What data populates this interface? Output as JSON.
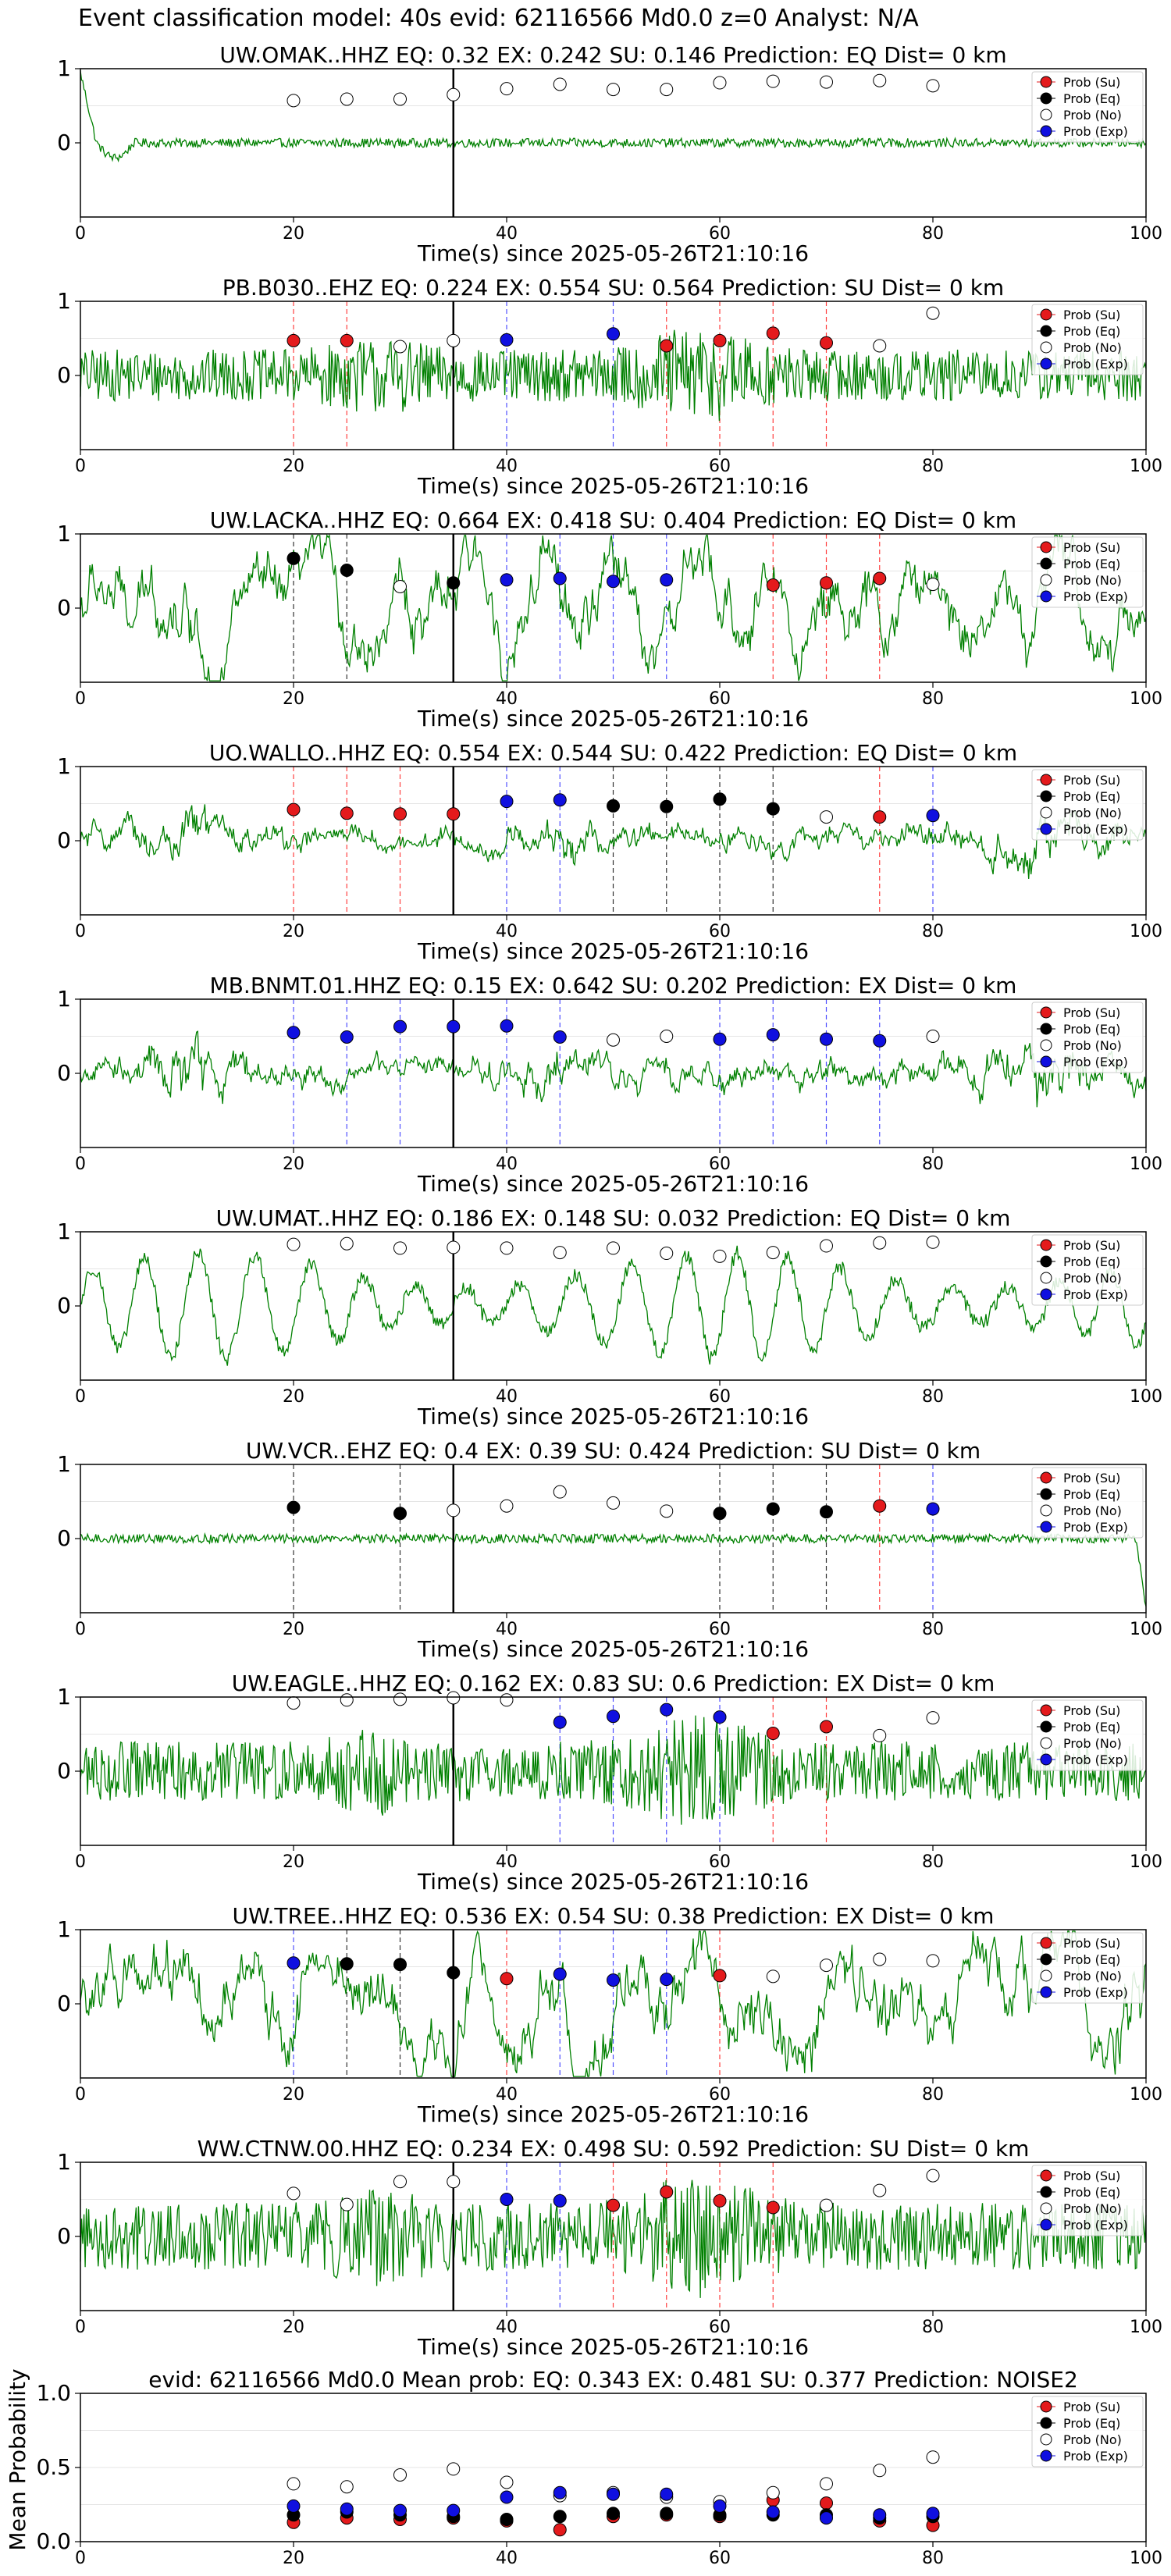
{
  "suptitle": "Event classification model: 40s evid: 62116566 Md0.0 z=0 Analyst: N/A",
  "legend_labels": [
    "Prob (Su)",
    "Prob (Eq)",
    "Prob (No)",
    "Prob (Exp)"
  ],
  "colors": {
    "su": "#e41a1c",
    "eq": "#000000",
    "no": "#ffffff",
    "exp": "#1010e0",
    "trace": "#008000"
  },
  "xlabel": "Time(s) since 2025-05-26T21:10:16",
  "x_ticks": [
    "0",
    "20",
    "40",
    "60",
    "80",
    "100"
  ],
  "chart_data": [
    {
      "type": "line",
      "title": "UW.OMAK..HHZ   EQ: 0.32  EX: 0.242  SU: 0.146   Prediction: EQ    Dist= 0 km",
      "xlim": [
        0,
        100
      ],
      "ylim": [
        -1,
        1
      ],
      "y_ticks": [
        "1",
        "0"
      ],
      "arrival": 35,
      "trace": {
        "amp": 0.06,
        "style": "quiet",
        "spike_start": true
      },
      "points": [
        {
          "x": 20,
          "y": 0.57,
          "c": "no"
        },
        {
          "x": 25,
          "y": 0.59,
          "c": "no"
        },
        {
          "x": 30,
          "y": 0.59,
          "c": "no"
        },
        {
          "x": 35,
          "y": 0.65,
          "c": "no"
        },
        {
          "x": 40,
          "y": 0.73,
          "c": "no"
        },
        {
          "x": 45,
          "y": 0.79,
          "c": "no"
        },
        {
          "x": 50,
          "y": 0.72,
          "c": "no"
        },
        {
          "x": 55,
          "y": 0.72,
          "c": "no"
        },
        {
          "x": 60,
          "y": 0.81,
          "c": "no"
        },
        {
          "x": 65,
          "y": 0.83,
          "c": "no"
        },
        {
          "x": 70,
          "y": 0.82,
          "c": "no"
        },
        {
          "x": 75,
          "y": 0.84,
          "c": "no"
        },
        {
          "x": 80,
          "y": 0.77,
          "c": "no"
        }
      ]
    },
    {
      "type": "line",
      "title": "PB.B030..EHZ   EQ: 0.224  EX: 0.554  SU: 0.564   Prediction: SU    Dist= 0 km",
      "xlim": [
        0,
        100
      ],
      "ylim": [
        -1,
        1
      ],
      "y_ticks": [
        "1",
        "0"
      ],
      "arrival": 35,
      "trace": {
        "amp": 0.35,
        "style": "noisy"
      },
      "points": [
        {
          "x": 20,
          "y": 0.47,
          "c": "su"
        },
        {
          "x": 25,
          "y": 0.47,
          "c": "su"
        },
        {
          "x": 30,
          "y": 0.39,
          "c": "no"
        },
        {
          "x": 35,
          "y": 0.47,
          "c": "no"
        },
        {
          "x": 40,
          "y": 0.48,
          "c": "exp"
        },
        {
          "x": 50,
          "y": 0.56,
          "c": "exp"
        },
        {
          "x": 55,
          "y": 0.4,
          "c": "su"
        },
        {
          "x": 60,
          "y": 0.47,
          "c": "su"
        },
        {
          "x": 65,
          "y": 0.57,
          "c": "su"
        },
        {
          "x": 70,
          "y": 0.44,
          "c": "su"
        },
        {
          "x": 75,
          "y": 0.4,
          "c": "no"
        },
        {
          "x": 80,
          "y": 0.84,
          "c": "no"
        }
      ]
    },
    {
      "type": "line",
      "title": "UW.LACKA..HHZ   EQ: 0.664  EX: 0.418  SU: 0.404   Prediction: EQ    Dist= 0 km",
      "xlim": [
        0,
        100
      ],
      "ylim": [
        -1,
        1
      ],
      "y_ticks": [
        "1",
        "0"
      ],
      "arrival": 35,
      "trace": {
        "amp": 0.5,
        "style": "wavy"
      },
      "points": [
        {
          "x": 20,
          "y": 0.67,
          "c": "eq"
        },
        {
          "x": 25,
          "y": 0.51,
          "c": "eq"
        },
        {
          "x": 30,
          "y": 0.29,
          "c": "no"
        },
        {
          "x": 35,
          "y": 0.34,
          "c": "eq"
        },
        {
          "x": 40,
          "y": 0.38,
          "c": "exp"
        },
        {
          "x": 45,
          "y": 0.4,
          "c": "exp"
        },
        {
          "x": 50,
          "y": 0.36,
          "c": "exp"
        },
        {
          "x": 55,
          "y": 0.38,
          "c": "exp"
        },
        {
          "x": 65,
          "y": 0.31,
          "c": "su"
        },
        {
          "x": 70,
          "y": 0.34,
          "c": "su"
        },
        {
          "x": 75,
          "y": 0.4,
          "c": "su"
        },
        {
          "x": 80,
          "y": 0.32,
          "c": "no"
        }
      ]
    },
    {
      "type": "line",
      "title": "UO.WALLO..HHZ   EQ: 0.554  EX: 0.544  SU: 0.422   Prediction: EQ    Dist= 0 km",
      "xlim": [
        0,
        100
      ],
      "ylim": [
        -1,
        1
      ],
      "y_ticks": [
        "1",
        "0"
      ],
      "arrival": 35,
      "trace": {
        "amp": 0.4,
        "style": "bursty"
      },
      "points": [
        {
          "x": 20,
          "y": 0.42,
          "c": "su"
        },
        {
          "x": 25,
          "y": 0.37,
          "c": "su"
        },
        {
          "x": 30,
          "y": 0.36,
          "c": "su"
        },
        {
          "x": 35,
          "y": 0.36,
          "c": "su"
        },
        {
          "x": 40,
          "y": 0.53,
          "c": "exp"
        },
        {
          "x": 45,
          "y": 0.55,
          "c": "exp"
        },
        {
          "x": 50,
          "y": 0.47,
          "c": "eq"
        },
        {
          "x": 55,
          "y": 0.46,
          "c": "eq"
        },
        {
          "x": 60,
          "y": 0.56,
          "c": "eq"
        },
        {
          "x": 65,
          "y": 0.43,
          "c": "eq"
        },
        {
          "x": 70,
          "y": 0.32,
          "c": "no"
        },
        {
          "x": 75,
          "y": 0.32,
          "c": "su"
        },
        {
          "x": 80,
          "y": 0.34,
          "c": "exp"
        }
      ]
    },
    {
      "type": "line",
      "title": "MB.BNMT.01.HHZ   EQ: 0.15  EX: 0.642  SU: 0.202   Prediction: EX    Dist= 0 km",
      "xlim": [
        0,
        100
      ],
      "ylim": [
        -1,
        1
      ],
      "y_ticks": [
        "1",
        "0"
      ],
      "arrival": 35,
      "trace": {
        "amp": 0.45,
        "style": "bursty"
      },
      "points": [
        {
          "x": 20,
          "y": 0.55,
          "c": "exp"
        },
        {
          "x": 25,
          "y": 0.49,
          "c": "exp"
        },
        {
          "x": 30,
          "y": 0.63,
          "c": "exp"
        },
        {
          "x": 35,
          "y": 0.63,
          "c": "exp"
        },
        {
          "x": 40,
          "y": 0.64,
          "c": "exp"
        },
        {
          "x": 45,
          "y": 0.49,
          "c": "exp"
        },
        {
          "x": 50,
          "y": 0.45,
          "c": "no"
        },
        {
          "x": 55,
          "y": 0.5,
          "c": "no"
        },
        {
          "x": 60,
          "y": 0.46,
          "c": "exp"
        },
        {
          "x": 65,
          "y": 0.52,
          "c": "exp"
        },
        {
          "x": 70,
          "y": 0.46,
          "c": "exp"
        },
        {
          "x": 75,
          "y": 0.44,
          "c": "exp"
        },
        {
          "x": 80,
          "y": 0.5,
          "c": "no"
        }
      ]
    },
    {
      "type": "line",
      "title": "UW.UMAT..HHZ   EQ: 0.186  EX: 0.148  SU: 0.032   Prediction: EQ    Dist= 0 km",
      "xlim": [
        0,
        100
      ],
      "ylim": [
        -1,
        1
      ],
      "y_ticks": [
        "1",
        "0"
      ],
      "arrival": 35,
      "trace": {
        "amp": 0.6,
        "style": "oscill"
      },
      "points": [
        {
          "x": 20,
          "y": 0.83,
          "c": "no"
        },
        {
          "x": 25,
          "y": 0.84,
          "c": "no"
        },
        {
          "x": 30,
          "y": 0.78,
          "c": "no"
        },
        {
          "x": 35,
          "y": 0.79,
          "c": "no"
        },
        {
          "x": 40,
          "y": 0.78,
          "c": "no"
        },
        {
          "x": 45,
          "y": 0.72,
          "c": "no"
        },
        {
          "x": 50,
          "y": 0.78,
          "c": "no"
        },
        {
          "x": 55,
          "y": 0.71,
          "c": "no"
        },
        {
          "x": 60,
          "y": 0.67,
          "c": "no"
        },
        {
          "x": 65,
          "y": 0.72,
          "c": "no"
        },
        {
          "x": 70,
          "y": 0.81,
          "c": "no"
        },
        {
          "x": 75,
          "y": 0.85,
          "c": "no"
        },
        {
          "x": 80,
          "y": 0.86,
          "c": "no"
        }
      ]
    },
    {
      "type": "line",
      "title": "UW.VCR..EHZ   EQ: 0.4  EX: 0.39  SU: 0.424   Prediction: SU    Dist= 0 km",
      "xlim": [
        0,
        100
      ],
      "ylim": [
        -1,
        1
      ],
      "y_ticks": [
        "1",
        "0"
      ],
      "arrival": 35,
      "trace": {
        "amp": 0.06,
        "style": "quiet",
        "spike_end": true
      },
      "points": [
        {
          "x": 20,
          "y": 0.42,
          "c": "eq"
        },
        {
          "x": 30,
          "y": 0.34,
          "c": "eq"
        },
        {
          "x": 35,
          "y": 0.38,
          "c": "no"
        },
        {
          "x": 40,
          "y": 0.44,
          "c": "no"
        },
        {
          "x": 45,
          "y": 0.63,
          "c": "no"
        },
        {
          "x": 50,
          "y": 0.48,
          "c": "no"
        },
        {
          "x": 55,
          "y": 0.37,
          "c": "no"
        },
        {
          "x": 60,
          "y": 0.34,
          "c": "eq"
        },
        {
          "x": 65,
          "y": 0.4,
          "c": "eq"
        },
        {
          "x": 70,
          "y": 0.36,
          "c": "eq"
        },
        {
          "x": 75,
          "y": 0.44,
          "c": "su"
        },
        {
          "x": 80,
          "y": 0.4,
          "c": "exp"
        }
      ]
    },
    {
      "type": "line",
      "title": "UW.EAGLE..HHZ   EQ: 0.162  EX: 0.83  SU: 0.6   Prediction: EX    Dist= 0 km",
      "xlim": [
        0,
        100
      ],
      "ylim": [
        -1,
        1
      ],
      "y_ticks": [
        "1",
        "0"
      ],
      "arrival": 35,
      "trace": {
        "amp": 0.4,
        "style": "noisy"
      },
      "points": [
        {
          "x": 20,
          "y": 0.92,
          "c": "no"
        },
        {
          "x": 25,
          "y": 0.96,
          "c": "no"
        },
        {
          "x": 30,
          "y": 0.97,
          "c": "no"
        },
        {
          "x": 35,
          "y": 0.99,
          "c": "no"
        },
        {
          "x": 40,
          "y": 0.96,
          "c": "no"
        },
        {
          "x": 45,
          "y": 0.66,
          "c": "exp"
        },
        {
          "x": 50,
          "y": 0.74,
          "c": "exp"
        },
        {
          "x": 55,
          "y": 0.83,
          "c": "exp"
        },
        {
          "x": 60,
          "y": 0.73,
          "c": "exp"
        },
        {
          "x": 65,
          "y": 0.51,
          "c": "su"
        },
        {
          "x": 70,
          "y": 0.6,
          "c": "su"
        },
        {
          "x": 75,
          "y": 0.48,
          "c": "no"
        },
        {
          "x": 80,
          "y": 0.72,
          "c": "no"
        }
      ]
    },
    {
      "type": "line",
      "title": "UW.TREE..HHZ   EQ: 0.536  EX: 0.54  SU: 0.38   Prediction: EX    Dist= 0 km",
      "xlim": [
        0,
        100
      ],
      "ylim": [
        -1,
        1
      ],
      "y_ticks": [
        "1",
        "0"
      ],
      "arrival": 35,
      "trace": {
        "amp": 0.55,
        "style": "wavy"
      },
      "points": [
        {
          "x": 20,
          "y": 0.55,
          "c": "exp"
        },
        {
          "x": 25,
          "y": 0.54,
          "c": "eq"
        },
        {
          "x": 30,
          "y": 0.53,
          "c": "eq"
        },
        {
          "x": 35,
          "y": 0.42,
          "c": "eq"
        },
        {
          "x": 40,
          "y": 0.34,
          "c": "su"
        },
        {
          "x": 45,
          "y": 0.4,
          "c": "exp"
        },
        {
          "x": 50,
          "y": 0.32,
          "c": "exp"
        },
        {
          "x": 55,
          "y": 0.33,
          "c": "exp"
        },
        {
          "x": 60,
          "y": 0.38,
          "c": "su"
        },
        {
          "x": 65,
          "y": 0.37,
          "c": "no"
        },
        {
          "x": 70,
          "y": 0.52,
          "c": "no"
        },
        {
          "x": 75,
          "y": 0.6,
          "c": "no"
        },
        {
          "x": 80,
          "y": 0.58,
          "c": "no"
        }
      ]
    },
    {
      "type": "line",
      "title": "WW.CTNW.00.HHZ   EQ: 0.234  EX: 0.498  SU: 0.592   Prediction: SU    Dist= 0 km",
      "xlim": [
        0,
        100
      ],
      "ylim": [
        -1,
        1
      ],
      "y_ticks": [
        "1",
        "0"
      ],
      "arrival": 35,
      "trace": {
        "amp": 0.45,
        "style": "noisy"
      },
      "points": [
        {
          "x": 20,
          "y": 0.58,
          "c": "no"
        },
        {
          "x": 25,
          "y": 0.43,
          "c": "no"
        },
        {
          "x": 30,
          "y": 0.74,
          "c": "no"
        },
        {
          "x": 35,
          "y": 0.74,
          "c": "no"
        },
        {
          "x": 40,
          "y": 0.5,
          "c": "exp"
        },
        {
          "x": 45,
          "y": 0.48,
          "c": "exp"
        },
        {
          "x": 50,
          "y": 0.42,
          "c": "su"
        },
        {
          "x": 55,
          "y": 0.6,
          "c": "su"
        },
        {
          "x": 60,
          "y": 0.48,
          "c": "su"
        },
        {
          "x": 65,
          "y": 0.39,
          "c": "su"
        },
        {
          "x": 70,
          "y": 0.42,
          "c": "no"
        },
        {
          "x": 75,
          "y": 0.62,
          "c": "no"
        },
        {
          "x": 80,
          "y": 0.82,
          "c": "no"
        }
      ]
    },
    {
      "type": "scatter",
      "title": "evid: 62116566  Md0.0   Mean prob:   EQ: 0.343  EX: 0.481  SU: 0.377   Prediction: NOISE2",
      "ylabel": "Mean Probability",
      "xlim": [
        0,
        100
      ],
      "ylim": [
        0,
        1
      ],
      "y_ticks": [
        "1.0",
        "0.5",
        "0.0"
      ],
      "series": [
        {
          "name": "Prob (Su)",
          "c": "su",
          "x": [
            20,
            25,
            30,
            35,
            40,
            45,
            50,
            55,
            60,
            65,
            70,
            75,
            80
          ],
          "y": [
            0.13,
            0.16,
            0.15,
            0.16,
            0.14,
            0.08,
            0.17,
            0.18,
            0.17,
            0.28,
            0.26,
            0.14,
            0.11
          ]
        },
        {
          "name": "Prob (Eq)",
          "c": "eq",
          "x": [
            20,
            25,
            30,
            35,
            40,
            45,
            50,
            55,
            60,
            65,
            70,
            75,
            80
          ],
          "y": [
            0.18,
            0.2,
            0.18,
            0.17,
            0.15,
            0.17,
            0.19,
            0.19,
            0.18,
            0.18,
            0.18,
            0.16,
            0.17
          ]
        },
        {
          "name": "Prob (No)",
          "c": "no",
          "x": [
            20,
            25,
            30,
            35,
            40,
            45,
            50,
            55,
            60,
            65,
            70,
            75,
            80
          ],
          "y": [
            0.39,
            0.37,
            0.45,
            0.49,
            0.4,
            0.31,
            0.33,
            0.3,
            0.27,
            0.33,
            0.39,
            0.48,
            0.57
          ]
        },
        {
          "name": "Prob (Exp)",
          "c": "exp",
          "x": [
            20,
            25,
            30,
            35,
            40,
            45,
            50,
            55,
            60,
            65,
            70,
            75,
            80
          ],
          "y": [
            0.24,
            0.22,
            0.21,
            0.21,
            0.3,
            0.33,
            0.32,
            0.32,
            0.24,
            0.2,
            0.16,
            0.18,
            0.19
          ]
        }
      ]
    }
  ]
}
